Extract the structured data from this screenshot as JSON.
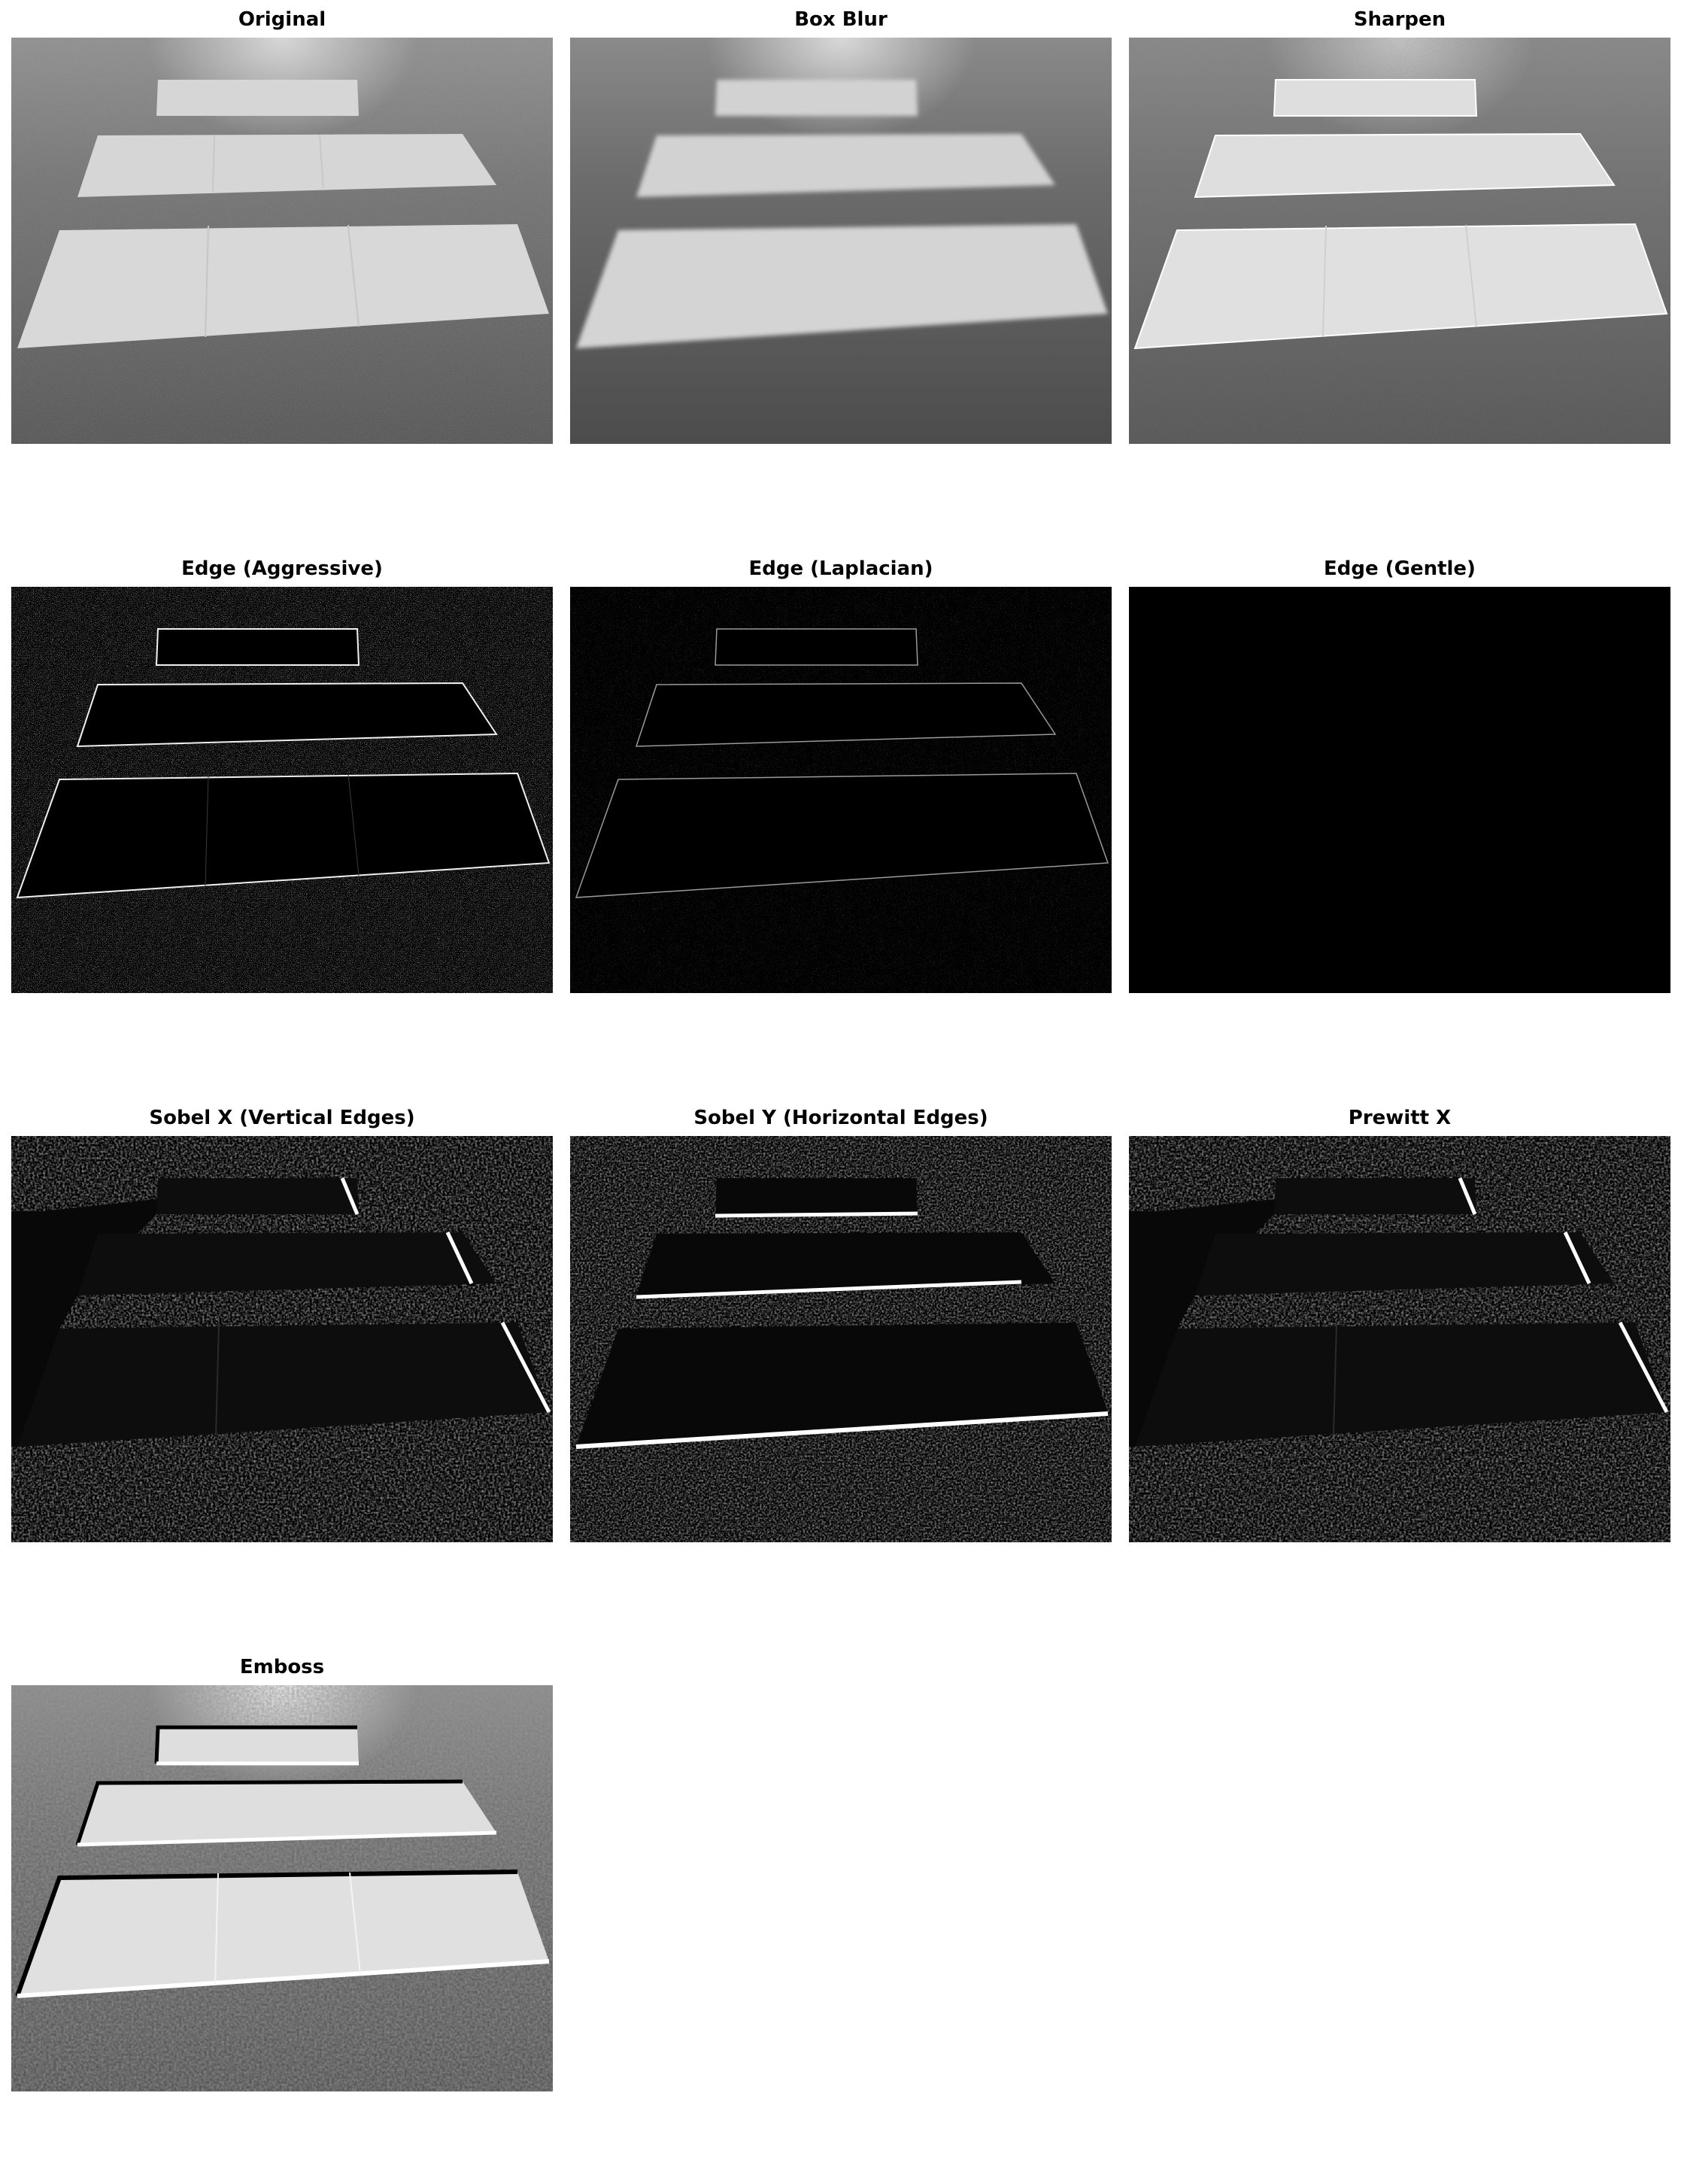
{
  "panels": [
    {
      "id": "original",
      "title": "Original",
      "style": "original"
    },
    {
      "id": "box-blur",
      "title": "Box Blur",
      "style": "blur"
    },
    {
      "id": "sharpen",
      "title": "Sharpen",
      "style": "sharpen"
    },
    {
      "id": "edge-aggressive",
      "title": "Edge (Aggressive)",
      "style": "edge_aggressive"
    },
    {
      "id": "edge-laplacian",
      "title": "Edge (Laplacian)",
      "style": "edge_laplacian"
    },
    {
      "id": "edge-gentle",
      "title": "Edge (Gentle)",
      "style": "black"
    },
    {
      "id": "sobel-x",
      "title": "Sobel X (Vertical Edges)",
      "style": "sobel_x"
    },
    {
      "id": "sobel-y",
      "title": "Sobel Y (Horizontal Edges)",
      "style": "sobel_y"
    },
    {
      "id": "prewitt-x",
      "title": "Prewitt X",
      "style": "sobel_x"
    },
    {
      "id": "emboss",
      "title": "Emboss",
      "style": "emboss"
    }
  ],
  "colors": {
    "background": "#ffffff",
    "asphalt": "#5a5a5a",
    "stripe": "#d4d4d4",
    "edge_black": "#000000",
    "edge_line": "#ffffff"
  }
}
